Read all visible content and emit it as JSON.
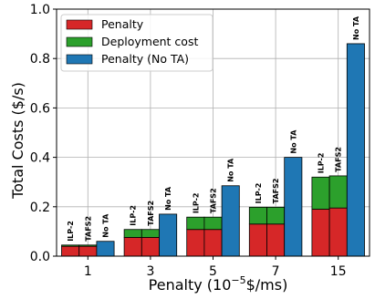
{
  "chart_data": {
    "type": "bar",
    "stacked": true,
    "grid": true,
    "legend_position": "top-left",
    "xlabel_prefix": "Penalty (10",
    "xlabel_exponent": "−5",
    "xlabel_suffix": "$/ms)",
    "ylabel": "Total Costs ($/s)",
    "ylim": [
      0.0,
      1.0
    ],
    "yticks": [
      "0.0",
      "0.2",
      "0.4",
      "0.6",
      "0.8",
      "1.0"
    ],
    "categories": [
      "1",
      "3",
      "5",
      "7",
      "15"
    ],
    "bar_labels": [
      "ILP-2",
      "TAFS2",
      "No TA"
    ],
    "colors": {
      "penalty": "#d62728",
      "deployment_cost": "#2ca02c",
      "penalty_no_ta": "#1f77b4"
    },
    "legend": [
      "Penalty",
      "Deployment cost",
      "Penalty (No TA)"
    ],
    "groups": [
      {
        "category": "1",
        "ilp2": {
          "penalty": 0.04,
          "deployment_cost": 0.005
        },
        "tafs2": {
          "penalty": 0.04,
          "deployment_cost": 0.005
        },
        "no_ta": 0.06
      },
      {
        "category": "3",
        "ilp2": {
          "penalty": 0.076,
          "deployment_cost": 0.032
        },
        "tafs2": {
          "penalty": 0.076,
          "deployment_cost": 0.032
        },
        "no_ta": 0.17
      },
      {
        "category": "5",
        "ilp2": {
          "penalty": 0.108,
          "deployment_cost": 0.05
        },
        "tafs2": {
          "penalty": 0.108,
          "deployment_cost": 0.05
        },
        "no_ta": 0.285
      },
      {
        "category": "7",
        "ilp2": {
          "penalty": 0.13,
          "deployment_cost": 0.068
        },
        "tafs2": {
          "penalty": 0.13,
          "deployment_cost": 0.068
        },
        "no_ta": 0.4
      },
      {
        "category": "15",
        "ilp2": {
          "penalty": 0.19,
          "deployment_cost": 0.13
        },
        "tafs2": {
          "penalty": 0.195,
          "deployment_cost": 0.13
        },
        "no_ta": 0.86
      }
    ]
  }
}
